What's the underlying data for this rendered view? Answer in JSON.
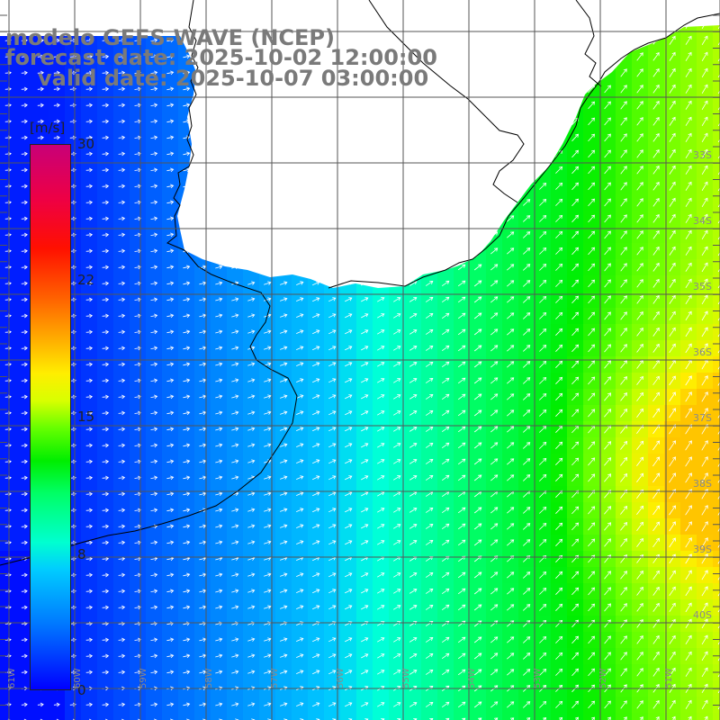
{
  "title": {
    "line1": "modelo GEFS-WAVE (NCEP)",
    "line2": "forecast date: 2025-10-02 12:00:00",
    "line3": "valid date: 2025-10-07 03:00:00"
  },
  "colorbar": {
    "unit": "[m/s]",
    "ticks": [
      "30",
      "22",
      "15",
      "8",
      "0"
    ],
    "tick_values": [
      30,
      22,
      15,
      8,
      0
    ],
    "range": [
      0,
      30
    ]
  },
  "lat_labels": [
    "33S",
    "34S",
    "35S",
    "36S",
    "37S",
    "38S",
    "39S",
    "40S"
  ],
  "lat_values": [
    33,
    34,
    35,
    36,
    37,
    38,
    39,
    40
  ],
  "lon_labels": [
    "61W",
    "60W",
    "59W",
    "58W",
    "57W",
    "56W",
    "55W",
    "54W",
    "53W",
    "52W",
    "51W"
  ],
  "lon_values": [
    61,
    60,
    59,
    58,
    57,
    56,
    55,
    54,
    53,
    52,
    51
  ],
  "colors": {
    "land": "#ffffff",
    "coast": "#000000",
    "grid": "#555555",
    "arrow": "#ffffff",
    "label": "#8a8a8a",
    "title": "#7a7a7a"
  },
  "icons": {
    "wind_arrow": "arrow-icon"
  }
}
